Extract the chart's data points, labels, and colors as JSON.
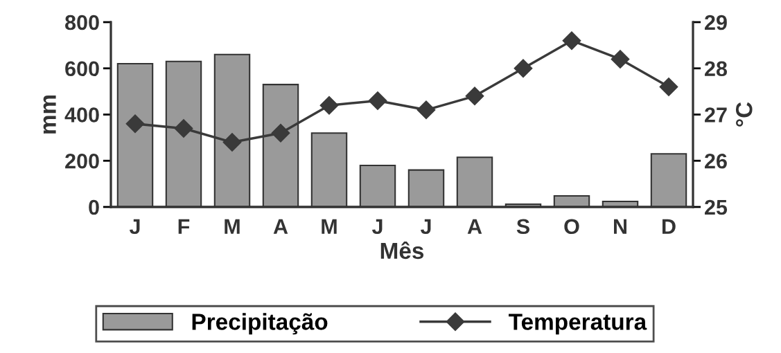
{
  "chart_data": {
    "type": "bar",
    "xlabel": "Mês",
    "ylabel": "mm",
    "y2label": "°C",
    "categories": [
      "J",
      "F",
      "M",
      "A",
      "M",
      "J",
      "J",
      "A",
      "S",
      "O",
      "N",
      "D"
    ],
    "series": [
      {
        "name": "Precipitação",
        "color": "#9a9a9a",
        "values": [
          620,
          630,
          660,
          530,
          320,
          180,
          160,
          215,
          12,
          48,
          24,
          230
        ]
      },
      {
        "name": "Temperatura",
        "type": "line",
        "axis": "y2",
        "color": "#3a3a3a",
        "marker": "diamond",
        "values": [
          26.8,
          26.7,
          26.4,
          26.6,
          27.2,
          27.3,
          27.1,
          27.4,
          28.0,
          28.6,
          28.2,
          27.6
        ]
      }
    ],
    "ylim": [
      0,
      800
    ],
    "yticks": [
      0,
      200,
      400,
      600,
      800
    ],
    "y2lim": [
      25,
      29
    ],
    "y2ticks": [
      25,
      26,
      27,
      28,
      29
    ],
    "grid": false,
    "legend": "bottom"
  }
}
